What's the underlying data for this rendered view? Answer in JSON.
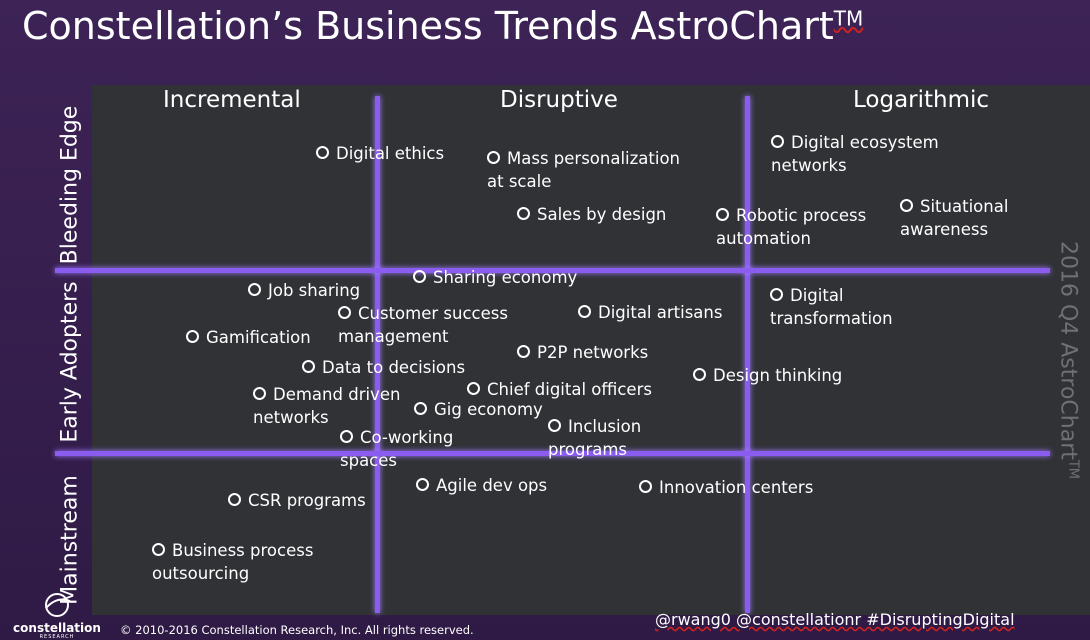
{
  "header": {
    "title": "Constellation’s Business Trends AstroChart",
    "title_mark": "TM"
  },
  "columns": [
    "Incremental",
    "Disruptive",
    "Logarithmic"
  ],
  "rows": [
    "Bleeding Edge",
    "Early Adopters",
    "Mainstream"
  ],
  "side_label": {
    "text": "2016 Q4 AstroChart",
    "mark": "TM"
  },
  "items": [
    "Digital ethics",
    "Mass personalization at scale",
    "Digital ecosystem networks",
    "Sales by design",
    "Robotic process automation",
    "Situational awareness",
    "Sharing economy",
    "Job sharing",
    "Customer success management",
    "Digital artisans",
    "Digital transformation",
    "Gamification",
    "Data to decisions",
    "P2P networks",
    "Design thinking",
    "Chief digital officers",
    "Demand driven networks",
    "Gig economy",
    "Inclusion programs",
    "Co-working spaces",
    "Agile dev ops",
    "Innovation centers",
    "CSR programs",
    "Business process outsourcing"
  ],
  "footer": {
    "logo_name": "constellation",
    "logo_sub": "RESEARCH",
    "copyright": "© 2010-2016 Constellation Research, Inc. All rights reserved.",
    "hashtags": "@rwang0 @constellationr #DisruptingDigital"
  }
}
